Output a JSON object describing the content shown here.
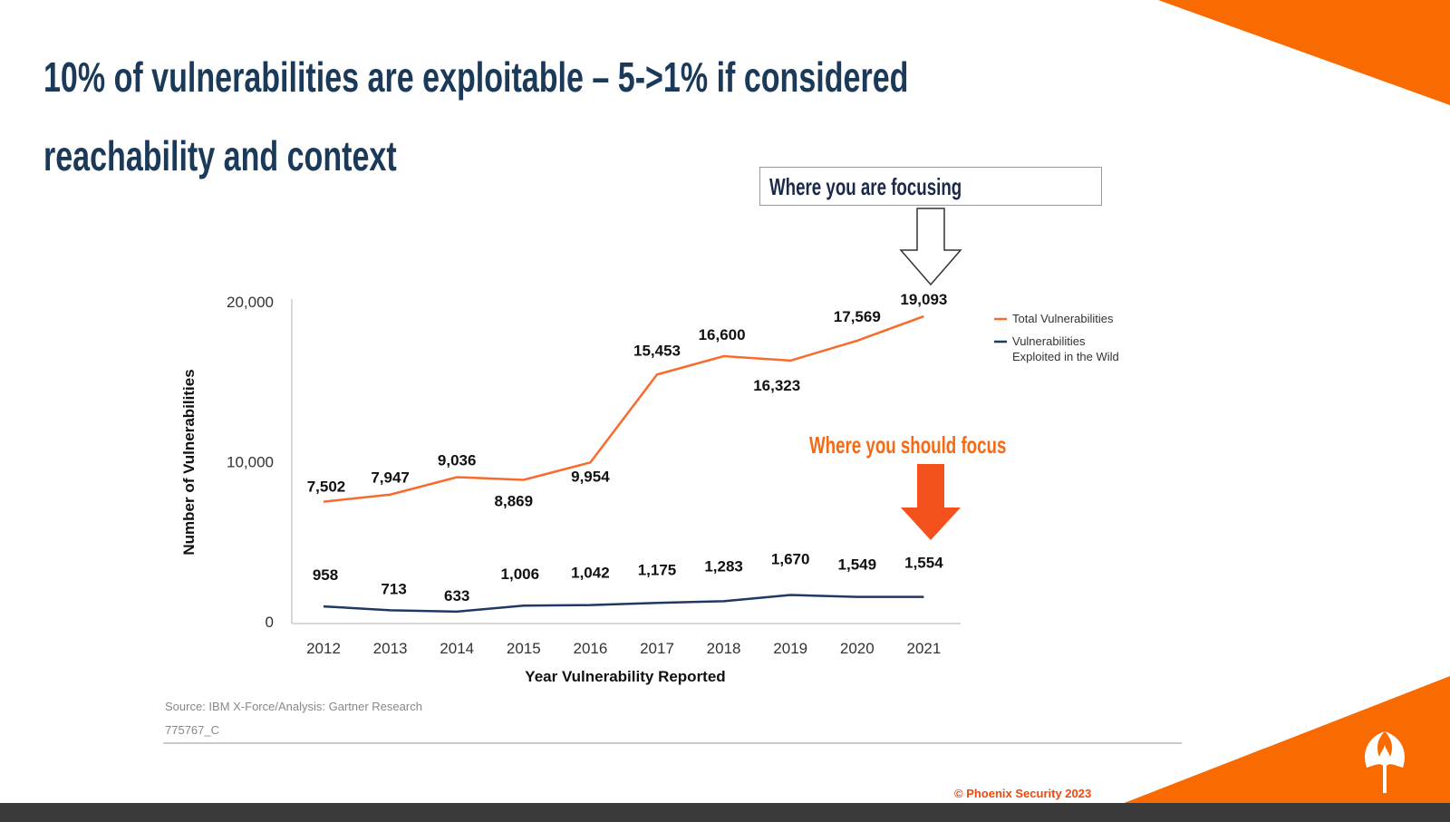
{
  "slide": {
    "title_line1": "10% of vulnerabilities are exploitable – 5->1% if considered",
    "title_line2": "reachability and context",
    "callout_current": "Where you are focusing",
    "callout_should": "Where you should focus",
    "source": "Source: IBM X-Force/Analysis: Gartner Research",
    "figure_id": "775767_C",
    "copyright": "© Phoenix Security 2023",
    "colors": {
      "title": "#1b3a5a",
      "accent": "#f96a00",
      "focus_arrow": "#f4511e"
    },
    "icons": [
      "hollow-down-arrow-icon",
      "filled-down-arrow-icon",
      "phoenix-logo-icon"
    ]
  },
  "chart_data": {
    "type": "line",
    "xlabel": "Year Vulnerability Reported",
    "ylabel": "Number of Vulnerabilities",
    "ylim": [
      0,
      20000
    ],
    "yticks": [
      "0",
      "10,000",
      "20,000"
    ],
    "yticks_values": [
      0,
      10000,
      20000
    ],
    "grid": false,
    "legend_position": "right",
    "categories": [
      "2012",
      "2013",
      "2014",
      "2015",
      "2016",
      "2017",
      "2018",
      "2019",
      "2020",
      "2021"
    ],
    "series": [
      {
        "name": "Total Vulnerabilities",
        "color": "#f96a2d",
        "values": [
          7502,
          7947,
          9036,
          8869,
          9954,
          15453,
          16600,
          16323,
          17569,
          19093
        ],
        "labels": [
          "7,502",
          "7,947",
          "9,036",
          "8,869",
          "9,954",
          "15,453",
          "16,600",
          "16,323",
          "17,569",
          "19,093"
        ]
      },
      {
        "name": "Vulnerabilities Exploited in the Wild",
        "name_line1": "Vulnerabilities",
        "name_line2": "Exploited in the Wild",
        "color": "#1f3864",
        "values": [
          958,
          713,
          633,
          1006,
          1042,
          1175,
          1283,
          1670,
          1549,
          1554
        ],
        "labels": [
          "958",
          "713",
          "633",
          "1,006",
          "1,042",
          "1,175",
          "1,283",
          "1,670",
          "1,549",
          "1,554"
        ]
      }
    ]
  }
}
